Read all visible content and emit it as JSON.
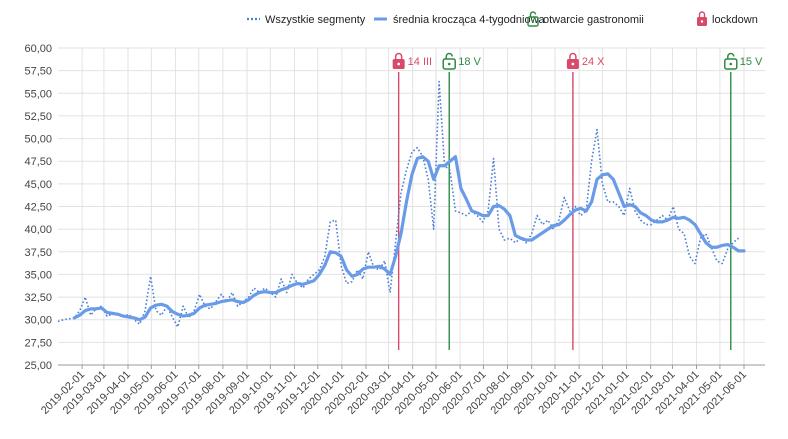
{
  "colors": {
    "dotted": "#4a7fd6",
    "average": "#6a9be8",
    "open": "#2e8b45",
    "lockdown": "#d84a6a",
    "grid": "#e2e2e2"
  },
  "chart_data": {
    "type": "line",
    "title": "",
    "xlabel": "",
    "ylabel": "",
    "ylim": [
      25,
      60
    ],
    "y_ticks": [
      "25,00",
      "27,50",
      "30,00",
      "32,50",
      "35,00",
      "37,50",
      "40,00",
      "42,50",
      "45,00",
      "47,50",
      "50,00",
      "52,50",
      "55,00",
      "57,50",
      "60,00"
    ],
    "x_range": [
      "2019-01-01",
      "2021-06-28"
    ],
    "x_ticks": [
      "2019-02-01",
      "2019-03-01",
      "2019-04-01",
      "2019-05-01",
      "2019-06-01",
      "2019-07-01",
      "2019-08-01",
      "2019-09-01",
      "2019-10-01",
      "2019-11-01",
      "2019-12-01",
      "2020-01-01",
      "2020-02-01",
      "2020-03-01",
      "2020-04-01",
      "2020-05-01",
      "2020-06-01",
      "2020-07-01",
      "2020-08-01",
      "2020-09-01",
      "2020-10-01",
      "2020-11-01",
      "2020-12-01",
      "2021-01-01",
      "2021-02-01",
      "2021-03-01",
      "2021-04-01",
      "2021-05-01",
      "2021-06-01"
    ],
    "grid": true,
    "legend_position": "top-right",
    "legend": [
      {
        "label": "Wszystkie segmenty",
        "icon": "dotted-line-icon"
      },
      {
        "label": "średnia krocząca 4-tygodniowa",
        "icon": "solid-line-icon"
      },
      {
        "label": "otwarcie gastronomii",
        "icon": "unlock-icon"
      },
      {
        "label": "lockdown",
        "icon": "lock-icon"
      }
    ],
    "series": [
      {
        "name": "Wszystkie segmenty",
        "style": "dotted",
        "points": [
          [
            "2019-01-01",
            29.8
          ],
          [
            "2019-01-08",
            30.0
          ],
          [
            "2019-01-15",
            30.1
          ],
          [
            "2019-01-22",
            30.2
          ],
          [
            "2019-01-29",
            31.0
          ],
          [
            "2019-02-05",
            32.5
          ],
          [
            "2019-02-12",
            30.5
          ],
          [
            "2019-02-19",
            31.2
          ],
          [
            "2019-02-26",
            31.5
          ],
          [
            "2019-03-05",
            30.4
          ],
          [
            "2019-03-12",
            30.6
          ],
          [
            "2019-03-19",
            30.7
          ],
          [
            "2019-03-26",
            30.3
          ],
          [
            "2019-04-02",
            30.6
          ],
          [
            "2019-04-09",
            30.0
          ],
          [
            "2019-04-16",
            29.5
          ],
          [
            "2019-04-23",
            31.0
          ],
          [
            "2019-04-30",
            34.8
          ],
          [
            "2019-05-07",
            31.0
          ],
          [
            "2019-05-14",
            30.5
          ],
          [
            "2019-05-21",
            31.5
          ],
          [
            "2019-05-28",
            30.3
          ],
          [
            "2019-06-04",
            29.2
          ],
          [
            "2019-06-11",
            31.5
          ],
          [
            "2019-06-18",
            30.2
          ],
          [
            "2019-06-25",
            31.0
          ],
          [
            "2019-07-02",
            32.8
          ],
          [
            "2019-07-09",
            31.5
          ],
          [
            "2019-07-16",
            31.2
          ],
          [
            "2019-07-23",
            32.0
          ],
          [
            "2019-07-30",
            32.8
          ],
          [
            "2019-08-06",
            32.0
          ],
          [
            "2019-08-13",
            33.0
          ],
          [
            "2019-08-20",
            31.5
          ],
          [
            "2019-08-27",
            32.0
          ],
          [
            "2019-09-03",
            32.5
          ],
          [
            "2019-09-10",
            33.5
          ],
          [
            "2019-09-17",
            33.0
          ],
          [
            "2019-09-24",
            33.5
          ],
          [
            "2019-10-01",
            33.0
          ],
          [
            "2019-10-08",
            32.5
          ],
          [
            "2019-10-15",
            34.5
          ],
          [
            "2019-10-22",
            33.0
          ],
          [
            "2019-10-29",
            35.0
          ],
          [
            "2019-11-05",
            34.0
          ],
          [
            "2019-11-12",
            33.5
          ],
          [
            "2019-11-19",
            34.5
          ],
          [
            "2019-11-26",
            35.0
          ],
          [
            "2019-12-03",
            35.5
          ],
          [
            "2019-12-10",
            37.0
          ],
          [
            "2019-12-17",
            40.8
          ],
          [
            "2019-12-24",
            41.0
          ],
          [
            "2019-12-31",
            36.0
          ],
          [
            "2020-01-07",
            34.0
          ],
          [
            "2020-01-14",
            34.2
          ],
          [
            "2020-01-21",
            35.5
          ],
          [
            "2020-01-28",
            34.5
          ],
          [
            "2020-02-04",
            37.5
          ],
          [
            "2020-02-11",
            35.8
          ],
          [
            "2020-02-18",
            35.5
          ],
          [
            "2020-02-25",
            36.5
          ],
          [
            "2020-03-03",
            33.0
          ],
          [
            "2020-03-10",
            38.5
          ],
          [
            "2020-03-17",
            44.0
          ],
          [
            "2020-03-24",
            46.5
          ],
          [
            "2020-03-31",
            48.5
          ],
          [
            "2020-04-07",
            49.0
          ],
          [
            "2020-04-14",
            48.0
          ],
          [
            "2020-04-21",
            45.5
          ],
          [
            "2020-04-28",
            40.0
          ],
          [
            "2020-05-05",
            56.3
          ],
          [
            "2020-05-12",
            47.0
          ],
          [
            "2020-05-19",
            46.5
          ],
          [
            "2020-05-26",
            42.0
          ],
          [
            "2020-06-02",
            41.8
          ],
          [
            "2020-06-09",
            41.5
          ],
          [
            "2020-06-16",
            42.0
          ],
          [
            "2020-06-23",
            41.5
          ],
          [
            "2020-06-30",
            40.8
          ],
          [
            "2020-07-07",
            42.0
          ],
          [
            "2020-07-14",
            47.8
          ],
          [
            "2020-07-21",
            40.0
          ],
          [
            "2020-07-28",
            38.8
          ],
          [
            "2020-08-04",
            39.0
          ],
          [
            "2020-08-11",
            38.5
          ],
          [
            "2020-08-18",
            39.0
          ],
          [
            "2020-08-25",
            38.5
          ],
          [
            "2020-09-01",
            39.5
          ],
          [
            "2020-09-08",
            41.5
          ],
          [
            "2020-09-15",
            40.5
          ],
          [
            "2020-09-22",
            41.0
          ],
          [
            "2020-09-29",
            40.0
          ],
          [
            "2020-10-06",
            41.0
          ],
          [
            "2020-10-13",
            43.5
          ],
          [
            "2020-10-20",
            42.0
          ],
          [
            "2020-10-27",
            42.5
          ],
          [
            "2020-11-03",
            41.5
          ],
          [
            "2020-11-10",
            42.0
          ],
          [
            "2020-11-17",
            47.5
          ],
          [
            "2020-11-24",
            51.0
          ],
          [
            "2020-12-01",
            45.0
          ],
          [
            "2020-12-08",
            43.0
          ],
          [
            "2020-12-15",
            43.0
          ],
          [
            "2020-12-22",
            42.5
          ],
          [
            "2020-12-29",
            41.5
          ],
          [
            "2021-01-05",
            44.5
          ],
          [
            "2021-01-12",
            42.0
          ],
          [
            "2021-01-19",
            41.0
          ],
          [
            "2021-01-26",
            40.5
          ],
          [
            "2021-02-02",
            40.5
          ],
          [
            "2021-02-09",
            41.0
          ],
          [
            "2021-02-16",
            41.5
          ],
          [
            "2021-02-23",
            41.0
          ],
          [
            "2021-03-02",
            42.5
          ],
          [
            "2021-03-09",
            40.0
          ],
          [
            "2021-03-16",
            39.5
          ],
          [
            "2021-03-23",
            37.0
          ],
          [
            "2021-03-30",
            36.2
          ],
          [
            "2021-04-06",
            39.0
          ],
          [
            "2021-04-13",
            39.5
          ],
          [
            "2021-04-20",
            38.0
          ],
          [
            "2021-04-27",
            36.5
          ],
          [
            "2021-05-04",
            36.2
          ],
          [
            "2021-05-11",
            37.8
          ],
          [
            "2021-05-18",
            38.5
          ],
          [
            "2021-05-25",
            39.0
          ]
        ]
      },
      {
        "name": "średnia krocząca 4-tygodniowa",
        "style": "solid",
        "points": [
          [
            "2019-01-22",
            30.2
          ],
          [
            "2019-01-29",
            30.5
          ],
          [
            "2019-02-05",
            31.0
          ],
          [
            "2019-02-12",
            31.2
          ],
          [
            "2019-02-19",
            31.2
          ],
          [
            "2019-02-26",
            31.3
          ],
          [
            "2019-03-05",
            30.8
          ],
          [
            "2019-03-12",
            30.7
          ],
          [
            "2019-03-19",
            30.6
          ],
          [
            "2019-03-26",
            30.4
          ],
          [
            "2019-04-02",
            30.3
          ],
          [
            "2019-04-09",
            30.2
          ],
          [
            "2019-04-16",
            30.0
          ],
          [
            "2019-04-23",
            30.3
          ],
          [
            "2019-04-30",
            31.3
          ],
          [
            "2019-05-07",
            31.6
          ],
          [
            "2019-05-14",
            31.7
          ],
          [
            "2019-05-21",
            31.5
          ],
          [
            "2019-05-28",
            30.9
          ],
          [
            "2019-06-04",
            30.6
          ],
          [
            "2019-06-11",
            30.4
          ],
          [
            "2019-06-18",
            30.5
          ],
          [
            "2019-06-25",
            30.7
          ],
          [
            "2019-07-02",
            31.3
          ],
          [
            "2019-07-09",
            31.6
          ],
          [
            "2019-07-16",
            31.7
          ],
          [
            "2019-07-23",
            31.8
          ],
          [
            "2019-07-30",
            32.0
          ],
          [
            "2019-08-06",
            32.1
          ],
          [
            "2019-08-13",
            32.2
          ],
          [
            "2019-08-20",
            32.0
          ],
          [
            "2019-08-27",
            31.9
          ],
          [
            "2019-09-03",
            32.2
          ],
          [
            "2019-09-10",
            32.7
          ],
          [
            "2019-09-17",
            33.0
          ],
          [
            "2019-09-24",
            33.1
          ],
          [
            "2019-10-01",
            33.0
          ],
          [
            "2019-10-08",
            33.0
          ],
          [
            "2019-10-15",
            33.3
          ],
          [
            "2019-10-22",
            33.5
          ],
          [
            "2019-10-29",
            33.8
          ],
          [
            "2019-11-05",
            34.0
          ],
          [
            "2019-11-12",
            33.9
          ],
          [
            "2019-11-19",
            34.1
          ],
          [
            "2019-11-26",
            34.3
          ],
          [
            "2019-12-03",
            35.0
          ],
          [
            "2019-12-10",
            36.0
          ],
          [
            "2019-12-17",
            37.5
          ],
          [
            "2019-12-24",
            37.4
          ],
          [
            "2019-12-31",
            37.0
          ],
          [
            "2020-01-07",
            35.5
          ],
          [
            "2020-01-14",
            34.8
          ],
          [
            "2020-01-21",
            35.0
          ],
          [
            "2020-01-28",
            35.6
          ],
          [
            "2020-02-04",
            35.8
          ],
          [
            "2020-02-11",
            35.8
          ],
          [
            "2020-02-18",
            35.9
          ],
          [
            "2020-02-25",
            35.6
          ],
          [
            "2020-03-03",
            35.0
          ],
          [
            "2020-03-10",
            37.0
          ],
          [
            "2020-03-17",
            39.5
          ],
          [
            "2020-03-24",
            43.0
          ],
          [
            "2020-03-31",
            46.0
          ],
          [
            "2020-04-07",
            47.8
          ],
          [
            "2020-04-14",
            48.0
          ],
          [
            "2020-04-21",
            47.5
          ],
          [
            "2020-04-28",
            45.5
          ],
          [
            "2020-05-05",
            47.0
          ],
          [
            "2020-05-12",
            47.0
          ],
          [
            "2020-05-19",
            47.5
          ],
          [
            "2020-05-26",
            48.0
          ],
          [
            "2020-06-02",
            44.5
          ],
          [
            "2020-06-09",
            43.3
          ],
          [
            "2020-06-16",
            42.0
          ],
          [
            "2020-06-23",
            41.8
          ],
          [
            "2020-06-30",
            41.5
          ],
          [
            "2020-07-07",
            41.5
          ],
          [
            "2020-07-14",
            42.5
          ],
          [
            "2020-07-21",
            42.6
          ],
          [
            "2020-07-28",
            42.2
          ],
          [
            "2020-08-04",
            41.5
          ],
          [
            "2020-08-11",
            39.3
          ],
          [
            "2020-08-18",
            39.0
          ],
          [
            "2020-08-25",
            38.8
          ],
          [
            "2020-09-01",
            38.8
          ],
          [
            "2020-09-08",
            39.2
          ],
          [
            "2020-09-15",
            39.6
          ],
          [
            "2020-09-22",
            40.0
          ],
          [
            "2020-09-29",
            40.4
          ],
          [
            "2020-10-06",
            40.5
          ],
          [
            "2020-10-13",
            41.0
          ],
          [
            "2020-10-20",
            41.6
          ],
          [
            "2020-10-27",
            42.1
          ],
          [
            "2020-11-03",
            42.3
          ],
          [
            "2020-11-10",
            42.0
          ],
          [
            "2020-11-17",
            43.0
          ],
          [
            "2020-11-24",
            45.5
          ],
          [
            "2020-12-01",
            46.0
          ],
          [
            "2020-12-08",
            46.1
          ],
          [
            "2020-12-15",
            45.5
          ],
          [
            "2020-12-22",
            44.0
          ],
          [
            "2020-12-29",
            42.5
          ],
          [
            "2021-01-05",
            42.7
          ],
          [
            "2021-01-12",
            42.5
          ],
          [
            "2021-01-19",
            41.8
          ],
          [
            "2021-01-26",
            41.5
          ],
          [
            "2021-02-02",
            41.0
          ],
          [
            "2021-02-09",
            40.8
          ],
          [
            "2021-02-16",
            40.8
          ],
          [
            "2021-02-23",
            41.0
          ],
          [
            "2021-03-02",
            41.3
          ],
          [
            "2021-03-09",
            41.2
          ],
          [
            "2021-03-16",
            41.3
          ],
          [
            "2021-03-23",
            41.0
          ],
          [
            "2021-03-30",
            40.5
          ],
          [
            "2021-04-06",
            39.5
          ],
          [
            "2021-04-13",
            38.5
          ],
          [
            "2021-04-20",
            38.0
          ],
          [
            "2021-04-27",
            38.0
          ],
          [
            "2021-05-04",
            38.2
          ],
          [
            "2021-05-11",
            38.3
          ],
          [
            "2021-05-18",
            38.0
          ],
          [
            "2021-05-25",
            37.6
          ],
          [
            "2021-06-01",
            37.6
          ]
        ]
      }
    ],
    "annotations": [
      {
        "label": "14 III",
        "kind": "lockdown",
        "date": "2020-03-14",
        "icon": "lock-icon"
      },
      {
        "label": "18 V",
        "kind": "open",
        "date": "2020-05-18",
        "icon": "unlock-icon"
      },
      {
        "label": "24 X",
        "kind": "lockdown",
        "date": "2020-10-24",
        "icon": "lock-icon"
      },
      {
        "label": "15 V",
        "kind": "open",
        "date": "2021-05-15",
        "icon": "unlock-icon"
      }
    ]
  }
}
